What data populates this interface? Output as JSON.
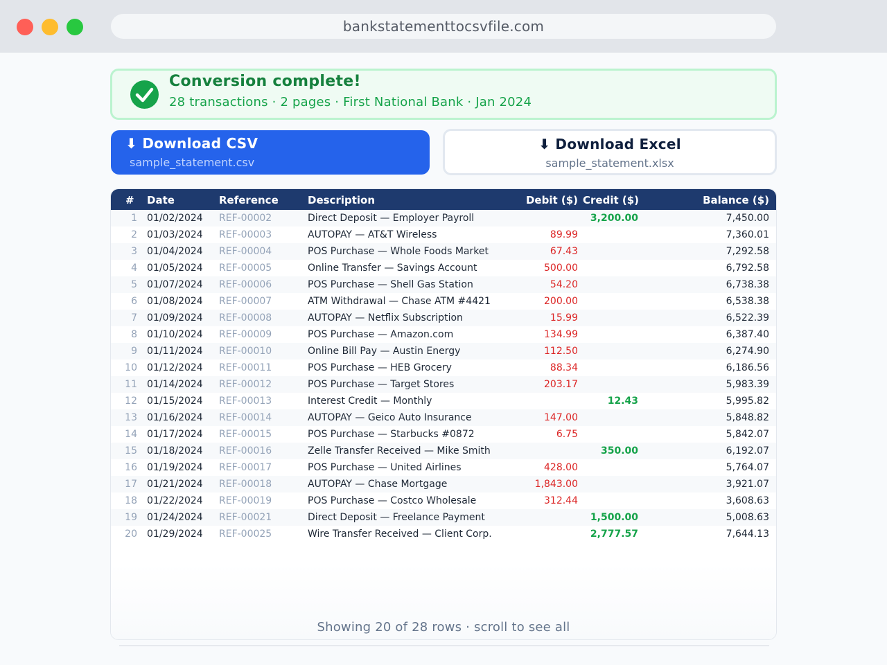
{
  "browser": {
    "url": "bankstatementtocsvfile.com"
  },
  "banner": {
    "title": "Conversion complete!",
    "subtitle": "28 transactions · 2 pages · First National Bank · Jan 2024"
  },
  "downloads": {
    "csv": {
      "label": "⬇ Download CSV",
      "file": "sample_statement.csv"
    },
    "excel": {
      "label": "⬇ Download Excel",
      "file": "sample_statement.xlsx"
    }
  },
  "table": {
    "headers": {
      "num": "#",
      "date": "Date",
      "reference": "Reference",
      "description": "Description",
      "debit": "Debit ($)",
      "credit": "Credit ($)",
      "balance": "Balance ($)"
    },
    "rows": [
      {
        "num": "1",
        "date": "01/02/2024",
        "ref": "REF-00002",
        "desc": "Direct Deposit — Employer Payroll",
        "debit": "",
        "credit": "3,200.00",
        "balance": "7,450.00"
      },
      {
        "num": "2",
        "date": "01/03/2024",
        "ref": "REF-00003",
        "desc": "AUTOPAY — AT&T Wireless",
        "debit": "89.99",
        "credit": "",
        "balance": "7,360.01"
      },
      {
        "num": "3",
        "date": "01/04/2024",
        "ref": "REF-00004",
        "desc": "POS Purchase — Whole Foods Market",
        "debit": "67.43",
        "credit": "",
        "balance": "7,292.58"
      },
      {
        "num": "4",
        "date": "01/05/2024",
        "ref": "REF-00005",
        "desc": "Online Transfer — Savings Account",
        "debit": "500.00",
        "credit": "",
        "balance": "6,792.58"
      },
      {
        "num": "5",
        "date": "01/07/2024",
        "ref": "REF-00006",
        "desc": "POS Purchase — Shell Gas Station",
        "debit": "54.20",
        "credit": "",
        "balance": "6,738.38"
      },
      {
        "num": "6",
        "date": "01/08/2024",
        "ref": "REF-00007",
        "desc": "ATM Withdrawal — Chase ATM #4421",
        "debit": "200.00",
        "credit": "",
        "balance": "6,538.38"
      },
      {
        "num": "7",
        "date": "01/09/2024",
        "ref": "REF-00008",
        "desc": "AUTOPAY — Netflix Subscription",
        "debit": "15.99",
        "credit": "",
        "balance": "6,522.39"
      },
      {
        "num": "8",
        "date": "01/10/2024",
        "ref": "REF-00009",
        "desc": "POS Purchase — Amazon.com",
        "debit": "134.99",
        "credit": "",
        "balance": "6,387.40"
      },
      {
        "num": "9",
        "date": "01/11/2024",
        "ref": "REF-00010",
        "desc": "Online Bill Pay — Austin Energy",
        "debit": "112.50",
        "credit": "",
        "balance": "6,274.90"
      },
      {
        "num": "10",
        "date": "01/12/2024",
        "ref": "REF-00011",
        "desc": "POS Purchase — HEB Grocery",
        "debit": "88.34",
        "credit": "",
        "balance": "6,186.56"
      },
      {
        "num": "11",
        "date": "01/14/2024",
        "ref": "REF-00012",
        "desc": "POS Purchase — Target Stores",
        "debit": "203.17",
        "credit": "",
        "balance": "5,983.39"
      },
      {
        "num": "12",
        "date": "01/15/2024",
        "ref": "REF-00013",
        "desc": "Interest Credit — Monthly",
        "debit": "",
        "credit": "12.43",
        "balance": "5,995.82"
      },
      {
        "num": "13",
        "date": "01/16/2024",
        "ref": "REF-00014",
        "desc": "AUTOPAY — Geico Auto Insurance",
        "debit": "147.00",
        "credit": "",
        "balance": "5,848.82"
      },
      {
        "num": "14",
        "date": "01/17/2024",
        "ref": "REF-00015",
        "desc": "POS Purchase — Starbucks #0872",
        "debit": "6.75",
        "credit": "",
        "balance": "5,842.07"
      },
      {
        "num": "15",
        "date": "01/18/2024",
        "ref": "REF-00016",
        "desc": "Zelle Transfer Received — Mike Smith",
        "debit": "",
        "credit": "350.00",
        "balance": "6,192.07"
      },
      {
        "num": "16",
        "date": "01/19/2024",
        "ref": "REF-00017",
        "desc": "POS Purchase — United Airlines",
        "debit": "428.00",
        "credit": "",
        "balance": "5,764.07"
      },
      {
        "num": "17",
        "date": "01/21/2024",
        "ref": "REF-00018",
        "desc": "AUTOPAY — Chase Mortgage",
        "debit": "1,843.00",
        "credit": "",
        "balance": "3,921.07"
      },
      {
        "num": "18",
        "date": "01/22/2024",
        "ref": "REF-00019",
        "desc": "POS Purchase — Costco Wholesale",
        "debit": "312.44",
        "credit": "",
        "balance": "3,608.63"
      },
      {
        "num": "19",
        "date": "01/24/2024",
        "ref": "REF-00021",
        "desc": "Direct Deposit — Freelance Payment",
        "debit": "",
        "credit": "1,500.00",
        "balance": "5,008.63"
      },
      {
        "num": "20",
        "date": "01/29/2024",
        "ref": "REF-00025",
        "desc": "Wire Transfer Received — Client Corp.",
        "debit": "",
        "credit": "2,777.57",
        "balance": "7,644.13"
      }
    ],
    "footer": "Showing 20 of 28 rows · scroll to see all"
  },
  "colors": {
    "primary": "#2563eb",
    "header": "#1e3a6e",
    "success": "#16a34a",
    "debit": "#dc2626"
  },
  "icons": {
    "banner": "check-circle-icon",
    "download": "download-arrow-icon"
  }
}
